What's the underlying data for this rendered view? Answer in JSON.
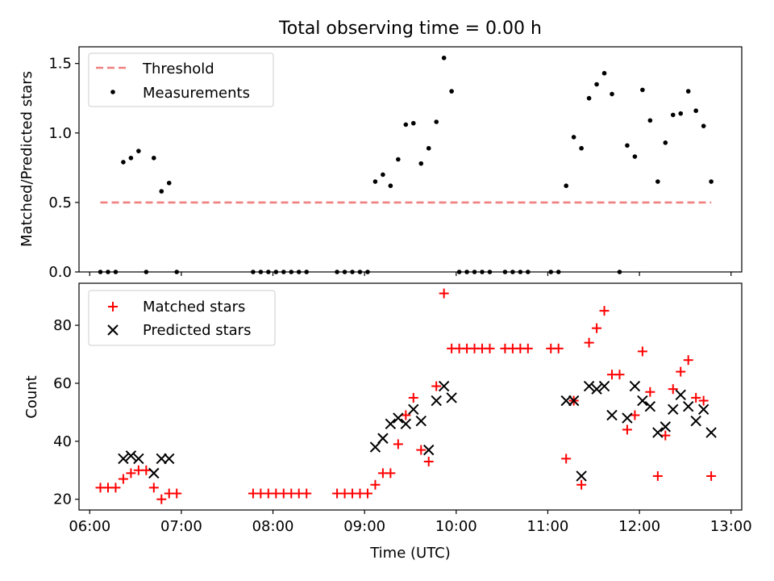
{
  "figure": {
    "title": "Total observing time = 0.00 h",
    "xlabel": "Time (UTC)",
    "x_ticks": [
      "06:00",
      "07:00",
      "08:00",
      "09:00",
      "10:00",
      "11:00",
      "12:00",
      "13:00"
    ]
  },
  "colors": {
    "threshold": "#f08080",
    "measurements": "#000000",
    "matched": "#ff0000",
    "predicted": "#000000"
  },
  "chart_data": [
    {
      "type": "scatter",
      "ylabel": "Matched/Predicted stars",
      "ylim": [
        0,
        1.62
      ],
      "xlim": [
        "05:53",
        "13:07"
      ],
      "y_ticks": [
        "0.0",
        "0.5",
        "1.0",
        "1.5"
      ],
      "legend_placement": "top-left",
      "series": [
        {
          "name": "Threshold",
          "kind": "line",
          "x": [
            "06:07",
            "12:47"
          ],
          "y": [
            0.5,
            0.5
          ]
        },
        {
          "name": "Measurements",
          "kind": "points",
          "points": [
            [
              "06:07",
              0
            ],
            [
              "06:12",
              0
            ],
            [
              "06:17",
              0
            ],
            [
              "06:22",
              0.79
            ],
            [
              "06:27",
              0.82
            ],
            [
              "06:32",
              0.87
            ],
            [
              "06:37",
              0
            ],
            [
              "06:42",
              0.82
            ],
            [
              "06:47",
              0.58
            ],
            [
              "06:52",
              0.64
            ],
            [
              "06:57",
              0
            ],
            [
              "07:47",
              0
            ],
            [
              "07:52",
              0
            ],
            [
              "07:57",
              0
            ],
            [
              "08:02",
              0
            ],
            [
              "08:07",
              0
            ],
            [
              "08:12",
              0
            ],
            [
              "08:17",
              0
            ],
            [
              "08:22",
              0
            ],
            [
              "08:42",
              0
            ],
            [
              "08:47",
              0
            ],
            [
              "08:52",
              0
            ],
            [
              "08:57",
              0
            ],
            [
              "09:02",
              0
            ],
            [
              "09:07",
              0.65
            ],
            [
              "09:12",
              0.7
            ],
            [
              "09:17",
              0.62
            ],
            [
              "09:22",
              0.81
            ],
            [
              "09:27",
              1.06
            ],
            [
              "09:32",
              1.07
            ],
            [
              "09:37",
              0.78
            ],
            [
              "09:42",
              0.89
            ],
            [
              "09:47",
              1.08
            ],
            [
              "09:52",
              1.54
            ],
            [
              "09:57",
              1.3
            ],
            [
              "10:02",
              0
            ],
            [
              "10:07",
              0
            ],
            [
              "10:12",
              0
            ],
            [
              "10:17",
              0
            ],
            [
              "10:22",
              0
            ],
            [
              "10:32",
              0
            ],
            [
              "10:37",
              0
            ],
            [
              "10:42",
              0
            ],
            [
              "10:47",
              0
            ],
            [
              "11:02",
              0
            ],
            [
              "11:07",
              0
            ],
            [
              "11:12",
              0.62
            ],
            [
              "11:17",
              0.97
            ],
            [
              "11:22",
              0.89
            ],
            [
              "11:27",
              1.25
            ],
            [
              "11:32",
              1.35
            ],
            [
              "11:37",
              1.43
            ],
            [
              "11:42",
              1.28
            ],
            [
              "11:47",
              0
            ],
            [
              "11:52",
              0.91
            ],
            [
              "11:57",
              0.83
            ],
            [
              "12:02",
              1.31
            ],
            [
              "12:07",
              1.09
            ],
            [
              "12:12",
              0.65
            ],
            [
              "12:17",
              0.93
            ],
            [
              "12:22",
              1.13
            ],
            [
              "12:27",
              1.14
            ],
            [
              "12:32",
              1.3
            ],
            [
              "12:37",
              1.16
            ],
            [
              "12:42",
              1.05
            ],
            [
              "12:47",
              0.65
            ]
          ]
        }
      ]
    },
    {
      "type": "scatter",
      "ylabel": "Count",
      "ylim": [
        16.3,
        94.5
      ],
      "xlim": [
        "05:53",
        "13:07"
      ],
      "y_ticks": [
        "20",
        "40",
        "60",
        "80"
      ],
      "legend_placement": "top-left",
      "series": [
        {
          "name": "Matched stars",
          "marker": "plus",
          "points": [
            [
              "06:07",
              24
            ],
            [
              "06:12",
              24
            ],
            [
              "06:17",
              24
            ],
            [
              "06:22",
              27
            ],
            [
              "06:27",
              29
            ],
            [
              "06:32",
              30
            ],
            [
              "06:37",
              30
            ],
            [
              "06:42",
              24
            ],
            [
              "06:47",
              20
            ],
            [
              "06:52",
              22
            ],
            [
              "06:57",
              22
            ],
            [
              "07:47",
              22
            ],
            [
              "07:52",
              22
            ],
            [
              "07:57",
              22
            ],
            [
              "08:02",
              22
            ],
            [
              "08:07",
              22
            ],
            [
              "08:12",
              22
            ],
            [
              "08:17",
              22
            ],
            [
              "08:22",
              22
            ],
            [
              "08:42",
              22
            ],
            [
              "08:47",
              22
            ],
            [
              "08:52",
              22
            ],
            [
              "08:57",
              22
            ],
            [
              "09:02",
              22
            ],
            [
              "09:07",
              25
            ],
            [
              "09:12",
              29
            ],
            [
              "09:17",
              29
            ],
            [
              "09:22",
              39
            ],
            [
              "09:27",
              49
            ],
            [
              "09:32",
              55
            ],
            [
              "09:37",
              37
            ],
            [
              "09:42",
              33
            ],
            [
              "09:47",
              59
            ],
            [
              "09:52",
              91
            ],
            [
              "09:57",
              72
            ],
            [
              "10:02",
              72
            ],
            [
              "10:07",
              72
            ],
            [
              "10:12",
              72
            ],
            [
              "10:17",
              72
            ],
            [
              "10:22",
              72
            ],
            [
              "10:32",
              72
            ],
            [
              "10:37",
              72
            ],
            [
              "10:42",
              72
            ],
            [
              "10:47",
              72
            ],
            [
              "11:02",
              72
            ],
            [
              "11:07",
              72
            ],
            [
              "11:12",
              34
            ],
            [
              "11:17",
              54
            ],
            [
              "11:22",
              25
            ],
            [
              "11:27",
              74
            ],
            [
              "11:32",
              79
            ],
            [
              "11:37",
              85
            ],
            [
              "11:42",
              63
            ],
            [
              "11:47",
              63
            ],
            [
              "11:52",
              44
            ],
            [
              "11:57",
              49
            ],
            [
              "12:02",
              71
            ],
            [
              "12:07",
              57
            ],
            [
              "12:12",
              28
            ],
            [
              "12:17",
              42
            ],
            [
              "12:22",
              58
            ],
            [
              "12:27",
              64
            ],
            [
              "12:32",
              68
            ],
            [
              "12:37",
              55
            ],
            [
              "12:42",
              54
            ],
            [
              "12:47",
              28
            ]
          ]
        },
        {
          "name": "Predicted stars",
          "marker": "x",
          "points": [
            [
              "06:22",
              34
            ],
            [
              "06:27",
              35
            ],
            [
              "06:32",
              34
            ],
            [
              "06:42",
              29
            ],
            [
              "06:47",
              34
            ],
            [
              "06:52",
              34
            ],
            [
              "09:07",
              38
            ],
            [
              "09:12",
              41
            ],
            [
              "09:17",
              46
            ],
            [
              "09:22",
              48
            ],
            [
              "09:27",
              46
            ],
            [
              "09:32",
              51
            ],
            [
              "09:37",
              47
            ],
            [
              "09:42",
              37
            ],
            [
              "09:47",
              54
            ],
            [
              "09:52",
              59
            ],
            [
              "09:57",
              55
            ],
            [
              "11:12",
              54
            ],
            [
              "11:17",
              54
            ],
            [
              "11:22",
              28
            ],
            [
              "11:27",
              59
            ],
            [
              "11:32",
              58
            ],
            [
              "11:37",
              59
            ],
            [
              "11:42",
              49
            ],
            [
              "11:52",
              48
            ],
            [
              "11:57",
              59
            ],
            [
              "12:02",
              54
            ],
            [
              "12:07",
              52
            ],
            [
              "12:12",
              43
            ],
            [
              "12:17",
              45
            ],
            [
              "12:22",
              51
            ],
            [
              "12:27",
              56
            ],
            [
              "12:32",
              52
            ],
            [
              "12:37",
              47
            ],
            [
              "12:42",
              51
            ],
            [
              "12:47",
              43
            ]
          ]
        }
      ]
    }
  ]
}
